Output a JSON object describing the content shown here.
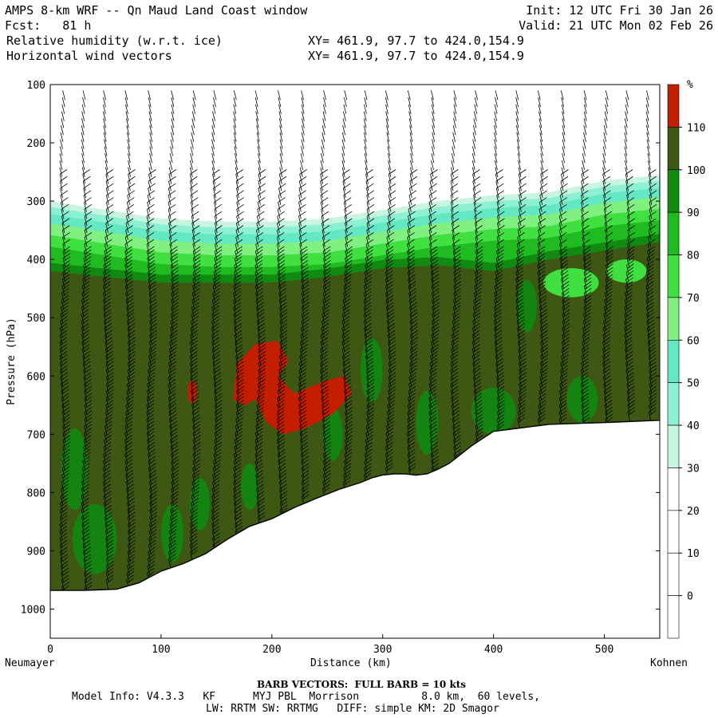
{
  "header": {
    "title": "AMPS 8-km WRF -- Qn Maud Land Coast window",
    "fcst": "Fcst:   81 h",
    "field1": "Relative humidity (w.r.t. ice)",
    "field2": "Horizontal wind vectors",
    "xy1": "XY= 461.9, 97.7 to 424.0,154.9",
    "xy2": "XY= 461.9, 97.7 to 424.0,154.9",
    "init": "Init: 12 UTC Fri 30 Jan 26",
    "valid": "Valid: 21 UTC Mon 02 Feb 26"
  },
  "chart_data": {
    "type": "heatmap",
    "title": "Relative humidity (w.r.t. ice) cross section with horizontal wind vectors",
    "xlabel": "Distance (km)",
    "ylabel": "Pressure (hPa)",
    "xlim": [
      0,
      550
    ],
    "ylim": [
      1050,
      100
    ],
    "x_ticks": [
      0,
      100,
      200,
      300,
      400,
      500
    ],
    "y_ticks": [
      100,
      200,
      300,
      400,
      500,
      600,
      700,
      800,
      900,
      1000
    ],
    "left_endpoint": "Neumayer",
    "right_endpoint": "Kohnen",
    "colorbar": {
      "unit": "%",
      "levels": [
        0,
        10,
        20,
        30,
        40,
        50,
        60,
        70,
        80,
        90,
        100,
        110
      ],
      "colors": [
        "#ffffff",
        "#ffffff",
        "#ffffff",
        "#ffffff",
        "#c8f5e0",
        "#8cf0d2",
        "#64e8c4",
        "#80f080",
        "#40e040",
        "#20bb20",
        "#108a10",
        "#3e5814",
        "#c41e00"
      ]
    },
    "terrain_profile": {
      "distance_km": [
        0,
        30,
        60,
        80,
        100,
        120,
        140,
        160,
        180,
        200,
        220,
        240,
        260,
        280,
        290,
        300,
        310,
        320,
        330,
        340,
        350,
        360,
        370,
        380,
        400,
        450,
        500,
        550
      ],
      "pressure_hPa": [
        968,
        968,
        966,
        955,
        935,
        922,
        905,
        880,
        858,
        845,
        826,
        810,
        795,
        783,
        775,
        770,
        768,
        768,
        770,
        768,
        760,
        750,
        735,
        720,
        695,
        683,
        680,
        676
      ]
    },
    "moist_layer_top_hPa": {
      "distance_km": [
        0,
        50,
        100,
        150,
        200,
        250,
        300,
        350,
        400,
        450,
        500,
        550
      ],
      "pressure_hPa": [
        300,
        315,
        330,
        335,
        335,
        330,
        315,
        300,
        290,
        285,
        265,
        255
      ]
    },
    "saturated_layer_top_hPa": {
      "distance_km": [
        0,
        50,
        100,
        150,
        200,
        250,
        300,
        350,
        400,
        450,
        500,
        550
      ],
      "pressure_hPa": [
        420,
        430,
        440,
        440,
        440,
        430,
        415,
        410,
        420,
        400,
        385,
        370
      ]
    },
    "supersaturated_regions": [
      {
        "center_km": 128,
        "center_hPa": 627,
        "label": "110+"
      },
      {
        "center_km": 200,
        "center_hPa": 610,
        "label": "110+"
      }
    ],
    "barbs_note": "BARB VECTORS:  FULL BARB = 10 kts"
  },
  "footer": {
    "barb_note": "BARB VECTORS:  FULL BARB = 10 kts",
    "model_info": "Model Info: V4.3.3   KF      MYJ PBL  Morrison          8.0 km,  60 levels,",
    "model_info2": "LW: RRTM SW: RRTMG   DIFF: simple KM: 2D Smagor"
  }
}
